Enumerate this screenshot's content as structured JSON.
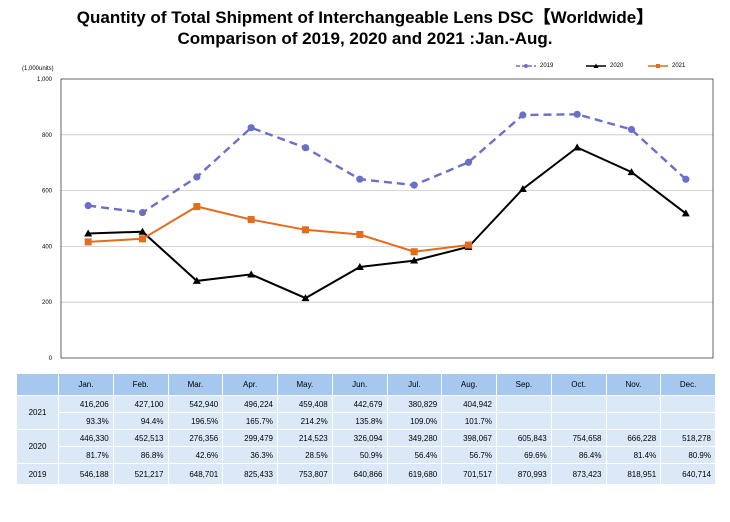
{
  "title": {
    "line1": "Quantity of Total Shipment of Interchangeable Lens DSC【Worldwide】",
    "line2": "Comparison of 2019, 2020 and 2021 :Jan.-Aug."
  },
  "colors": {
    "s2019": "#6a6fc8",
    "s2020": "#000000",
    "s2021": "#e46c1c",
    "grid": "#c8c8c8",
    "table_header": "#a6c8ef",
    "table_cell": "#dbe8f7"
  },
  "chart_data": {
    "type": "line",
    "unit_label": "(1,000units)",
    "ylim": [
      0,
      1000
    ],
    "yticks": [
      "0",
      "200",
      "400",
      "600",
      "800",
      "1,000"
    ],
    "ytick_values": [
      0,
      200,
      400,
      600,
      800,
      1000
    ],
    "categories": [
      "Jan.",
      "Feb.",
      "Mar.",
      "Apr.",
      "May.",
      "Jun.",
      "Jul.",
      "Aug.",
      "Sep.",
      "Oct.",
      "Nov.",
      "Dec."
    ],
    "grid": true,
    "legend_position": "top-right",
    "series": [
      {
        "name": "2019",
        "style": "dashed",
        "marker": "circle",
        "color": "#6a6fc8",
        "values": [
          546.188,
          521.217,
          648.701,
          825.433,
          753.807,
          640.866,
          619.68,
          701.517,
          870.993,
          873.423,
          818.951,
          640.714
        ]
      },
      {
        "name": "2020",
        "style": "solid",
        "marker": "triangle",
        "color": "#000000",
        "values": [
          446.33,
          452.513,
          276.356,
          299.479,
          214.523,
          326.094,
          349.28,
          398.067,
          605.843,
          754.658,
          666.228,
          518.278
        ]
      },
      {
        "name": "2021",
        "style": "solid",
        "marker": "square",
        "color": "#e46c1c",
        "values": [
          416.206,
          427.1,
          542.94,
          496.224,
          459.408,
          442.679,
          380.829,
          404.942,
          null,
          null,
          null,
          null
        ]
      }
    ]
  },
  "table": {
    "headers": [
      "",
      "Jan.",
      "Feb.",
      "Mar.",
      "Apr.",
      "May.",
      "Jun.",
      "Jul.",
      "Aug.",
      "Sep.",
      "Oct.",
      "Nov.",
      "Dec."
    ],
    "rows": [
      {
        "year": "2021",
        "values": [
          "416,206",
          "427,100",
          "542,940",
          "496,224",
          "459,408",
          "442,679",
          "380,829",
          "404,942",
          "",
          "",
          "",
          ""
        ],
        "ratios": [
          "93.3%",
          "94.4%",
          "196.5%",
          "165.7%",
          "214.2%",
          "135.8%",
          "109.0%",
          "101.7%",
          "",
          "",
          "",
          ""
        ]
      },
      {
        "year": "2020",
        "values": [
          "446,330",
          "452,513",
          "276,356",
          "299,479",
          "214,523",
          "326,094",
          "349,280",
          "398,067",
          "605,843",
          "754,658",
          "666,228",
          "518,278"
        ],
        "ratios": [
          "81.7%",
          "86.8%",
          "42.6%",
          "36.3%",
          "28.5%",
          "50.9%",
          "56.4%",
          "56.7%",
          "69.6%",
          "86.4%",
          "81.4%",
          "80.9%"
        ]
      },
      {
        "year": "2019",
        "values": [
          "546,188",
          "521,217",
          "648,701",
          "825,433",
          "753,807",
          "640,866",
          "619,680",
          "701,517",
          "870,993",
          "873,423",
          "818,951",
          "640,714"
        ]
      }
    ]
  }
}
